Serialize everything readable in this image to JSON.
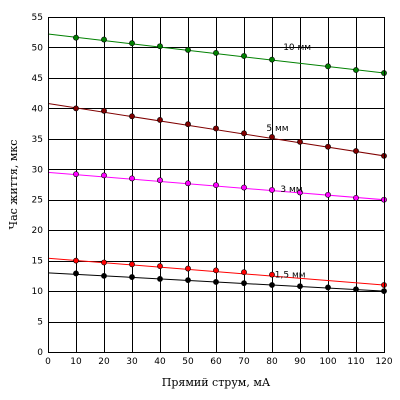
{
  "chart_data": {
    "type": "scatter",
    "xlabel": "Прямий струм, мА",
    "ylabel": "Час життя, мкс",
    "xlim": [
      0,
      120
    ],
    "ylim": [
      0,
      55
    ],
    "x_ticks": [
      0,
      10,
      20,
      30,
      40,
      50,
      60,
      70,
      80,
      90,
      100,
      110,
      120
    ],
    "y_ticks": [
      0,
      5,
      10,
      15,
      20,
      25,
      30,
      35,
      40,
      45,
      50,
      55
    ],
    "grid": true,
    "series": [
      {
        "name": "10 мм",
        "color": "#008000",
        "points": [
          [
            10,
            51.6
          ],
          [
            20,
            51.3
          ],
          [
            30,
            50.7
          ],
          [
            40,
            50.2
          ],
          [
            50,
            49.6
          ],
          [
            60,
            49.1
          ],
          [
            70,
            48.6
          ],
          [
            80,
            48.0
          ],
          [
            100,
            46.9
          ],
          [
            110,
            46.3
          ],
          [
            120,
            45.8
          ]
        ],
        "trend": [
          [
            0,
            52.2
          ],
          [
            120,
            45.8
          ]
        ],
        "label_at": [
          84,
          49.6
        ]
      },
      {
        "name": "5 мм",
        "color": "#800000",
        "points": [
          [
            10,
            40.0
          ],
          [
            20,
            39.6
          ],
          [
            30,
            38.7
          ],
          [
            40,
            38.1
          ],
          [
            50,
            37.4
          ],
          [
            60,
            36.7
          ],
          [
            70,
            35.9
          ],
          [
            80,
            35.3
          ],
          [
            90,
            34.5
          ],
          [
            100,
            33.7
          ],
          [
            110,
            33.0
          ],
          [
            120,
            32.2
          ]
        ],
        "trend": [
          [
            0,
            40.8
          ],
          [
            120,
            32.2
          ]
        ],
        "label_at": [
          78,
          36.3
        ]
      },
      {
        "name": "3 мм",
        "color": "#ff00ff",
        "points": [
          [
            10,
            29.2
          ],
          [
            20,
            29.0
          ],
          [
            30,
            28.5
          ],
          [
            40,
            28.2
          ],
          [
            50,
            27.7
          ],
          [
            60,
            27.4
          ],
          [
            70,
            27.0
          ],
          [
            80,
            26.6
          ],
          [
            90,
            26.2
          ],
          [
            100,
            25.8
          ],
          [
            110,
            25.3
          ],
          [
            120,
            25.0
          ]
        ],
        "trend": [
          [
            0,
            29.5
          ],
          [
            120,
            25.0
          ]
        ],
        "label_at": [
          83,
          26.3
        ]
      },
      {
        "name": "1,5 мм",
        "color": "#ff0000",
        "points": [
          [
            10,
            15.0
          ],
          [
            20,
            14.7
          ],
          [
            30,
            14.4
          ],
          [
            40,
            14.1
          ],
          [
            50,
            13.7
          ],
          [
            60,
            13.4
          ],
          [
            70,
            13.1
          ],
          [
            80,
            12.7
          ],
          [
            120,
            11.0
          ]
        ],
        "trend": [
          [
            0,
            15.4
          ],
          [
            120,
            11.0
          ]
        ],
        "label_at": [
          81,
          12.2
        ]
      },
      {
        "name": "",
        "color": "#000000",
        "points": [
          [
            10,
            12.9
          ],
          [
            20,
            12.5
          ],
          [
            30,
            12.3
          ],
          [
            40,
            12.0
          ],
          [
            50,
            11.8
          ],
          [
            60,
            11.5
          ],
          [
            70,
            11.3
          ],
          [
            80,
            11.0
          ],
          [
            90,
            10.8
          ],
          [
            100,
            10.6
          ],
          [
            110,
            10.3
          ],
          [
            120,
            10.0
          ]
        ],
        "trend": [
          [
            0,
            13.0
          ],
          [
            120,
            10.0
          ]
        ],
        "label_at": null
      }
    ]
  }
}
